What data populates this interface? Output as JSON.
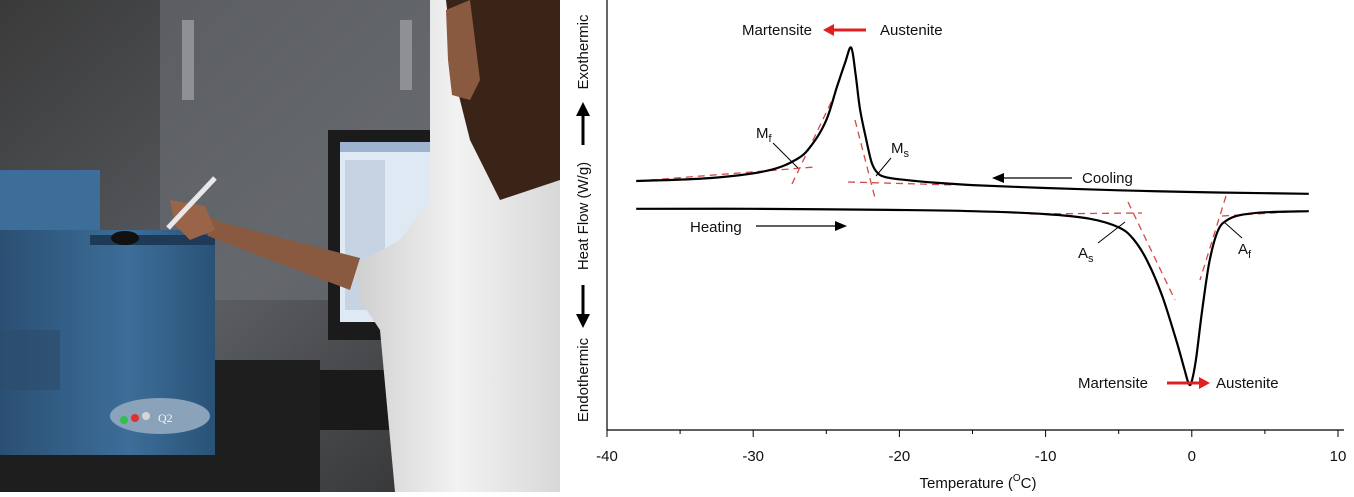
{
  "photo": {
    "description_icon": "lab-photo-dsc-instrument",
    "instrument_badge": "Q2"
  },
  "chart_data": {
    "type": "line",
    "title": "",
    "xlabel_main": "Temperature (",
    "xlabel_sup": "O",
    "xlabel_tail": "C)",
    "ylabel": "Heat Flow (W/g)",
    "ylabel_top": "Exothermic",
    "ylabel_bottom": "Endothermic",
    "xlim": [
      -40,
      10
    ],
    "xticks": [
      -40,
      -30,
      -20,
      -10,
      0,
      10
    ],
    "xtick_labels": [
      "-40",
      "-30",
      "-20",
      "-10",
      "0",
      "10"
    ],
    "series": [
      {
        "name": "Cooling",
        "x": [
          -38,
          -33,
          -29,
          -27,
          -26,
          -25,
          -24.3,
          -23.7,
          -23.3,
          -23.0,
          -22.7,
          -22.3,
          -21.9,
          -21.5,
          -21.0,
          -20.0,
          -18.0,
          -15.0,
          -10.0,
          -5.0,
          0.0,
          5.0,
          8.0
        ],
        "y": [
          0.0,
          0.05,
          0.18,
          0.38,
          0.62,
          1.05,
          1.6,
          2.05,
          2.3,
          1.85,
          1.25,
          0.75,
          0.32,
          0.14,
          0.07,
          0.03,
          -0.02,
          -0.07,
          -0.12,
          -0.16,
          -0.19,
          -0.21,
          -0.22
        ]
      },
      {
        "name": "Heating",
        "x": [
          -38,
          -30,
          -20,
          -15,
          -10,
          -7,
          -5,
          -4,
          -3,
          -2,
          -1,
          -0.5,
          -0.2,
          0.0,
          0.3,
          0.7,
          1.2,
          1.8,
          2.5,
          3.5,
          5.0,
          8.0
        ],
        "y": [
          -0.48,
          -0.48,
          -0.5,
          -0.52,
          -0.57,
          -0.65,
          -0.8,
          -1.0,
          -1.4,
          -2.0,
          -2.8,
          -3.25,
          -3.5,
          -3.45,
          -3.05,
          -2.25,
          -1.4,
          -0.85,
          -0.66,
          -0.58,
          -0.54,
          -0.52
        ]
      }
    ],
    "annotations": {
      "cooling_label": "Cooling",
      "heating_label": "Heating",
      "top_left": "Martensite",
      "top_right": "Austenite",
      "bottom_left": "Martensite",
      "bottom_right": "Austenite",
      "mf_base": "M",
      "mf_sub": "f",
      "ms_base": "M",
      "ms_sub": "s",
      "as_base": "A",
      "as_sub": "s",
      "af_base": "A",
      "af_sub": "f"
    },
    "colors": {
      "curve": "#000000",
      "tangent": "#d24a4a",
      "arrow_red": "#e02020"
    }
  }
}
